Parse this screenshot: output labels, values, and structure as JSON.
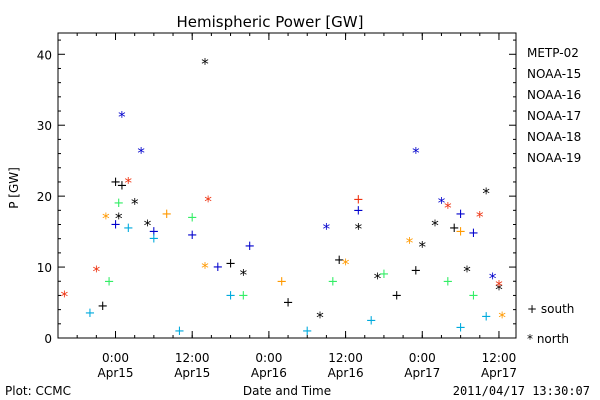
{
  "chart_data": {
    "type": "scatter",
    "title": "Hemispheric Power [GW]",
    "xlabel": "Date and Time",
    "ylabel": "P [GW]",
    "ylim": [
      0,
      43
    ],
    "y_ticks": [
      0,
      10,
      20,
      30,
      40
    ],
    "xlim": [
      "2011-04-14 15:00",
      "2011-04-17 14:40"
    ],
    "x_ticks": [
      {
        "at": "2011-04-15 00:00",
        "line1": "0:00",
        "line2": "Apr15"
      },
      {
        "at": "2011-04-15 12:00",
        "line1": "12:00",
        "line2": "Apr15"
      },
      {
        "at": "2011-04-16 00:00",
        "line1": "0:00",
        "line2": "Apr16"
      },
      {
        "at": "2011-04-16 12:00",
        "line1": "12:00",
        "line2": "Apr16"
      },
      {
        "at": "2011-04-17 00:00",
        "line1": "0:00",
        "line2": "Apr17"
      },
      {
        "at": "2011-04-17 12:00",
        "line1": "12:00",
        "line2": "Apr17"
      }
    ],
    "grid": false,
    "legend_position": "right",
    "marker_legend": {
      "south": "+ south",
      "north": "* north"
    },
    "series": [
      {
        "name": "METP-02",
        "color": "#000000",
        "points": [
          [
            "2011-04-14 22:00",
            4.5,
            "+"
          ],
          [
            "2011-04-15 00:00",
            22.0,
            "+"
          ],
          [
            "2011-04-15 00:30",
            17.0,
            "*"
          ],
          [
            "2011-04-15 01:00",
            21.5,
            "+"
          ],
          [
            "2011-04-15 03:00",
            19.0,
            "*"
          ],
          [
            "2011-04-15 05:00",
            16.0,
            "*"
          ],
          [
            "2011-04-15 14:00",
            38.8,
            "*"
          ],
          [
            "2011-04-15 18:00",
            10.5,
            "+"
          ],
          [
            "2011-04-15 20:00",
            9.0,
            "*"
          ],
          [
            "2011-04-16 03:00",
            5.0,
            "+"
          ],
          [
            "2011-04-16 08:00",
            3.0,
            "*"
          ],
          [
            "2011-04-16 11:00",
            11.0,
            "+"
          ],
          [
            "2011-04-16 14:00",
            15.5,
            "*"
          ],
          [
            "2011-04-16 17:00",
            8.5,
            "*"
          ],
          [
            "2011-04-16 20:00",
            6.0,
            "+"
          ],
          [
            "2011-04-16 23:00",
            9.5,
            "+"
          ],
          [
            "2011-04-17 00:00",
            13.0,
            "*"
          ],
          [
            "2011-04-17 02:00",
            16.0,
            "*"
          ],
          [
            "2011-04-17 05:00",
            15.5,
            "+"
          ],
          [
            "2011-04-17 07:00",
            9.5,
            "*"
          ],
          [
            "2011-04-17 10:00",
            20.5,
            "*"
          ],
          [
            "2011-04-17 12:00",
            7.0,
            "*"
          ]
        ]
      },
      {
        "name": "NOAA-15",
        "color": "#0000cc",
        "points": [
          [
            "2011-04-15 00:00",
            16.0,
            "+"
          ],
          [
            "2011-04-15 01:00",
            31.3,
            "*"
          ],
          [
            "2011-04-15 04:00",
            26.2,
            "*"
          ],
          [
            "2011-04-15 06:00",
            15.0,
            "+"
          ],
          [
            "2011-04-15 12:00",
            14.5,
            "+"
          ],
          [
            "2011-04-15 16:00",
            10.0,
            "+"
          ],
          [
            "2011-04-15 21:00",
            13.0,
            "+"
          ],
          [
            "2011-04-16 09:00",
            15.5,
            "*"
          ],
          [
            "2011-04-16 14:00",
            18.0,
            "+"
          ],
          [
            "2011-04-16 23:00",
            26.2,
            "*"
          ],
          [
            "2011-04-17 03:00",
            19.2,
            "*"
          ],
          [
            "2011-04-17 06:00",
            17.5,
            "+"
          ],
          [
            "2011-04-17 08:00",
            14.8,
            "+"
          ],
          [
            "2011-04-17 11:00",
            8.5,
            "*"
          ]
        ]
      },
      {
        "name": "NOAA-16",
        "color": "#00aadd",
        "points": [
          [
            "2011-04-14 20:00",
            3.5,
            "+"
          ],
          [
            "2011-04-15 02:00",
            15.5,
            "+"
          ],
          [
            "2011-04-15 06:00",
            14.0,
            "+"
          ],
          [
            "2011-04-15 10:00",
            1.0,
            "+"
          ],
          [
            "2011-04-15 18:00",
            6.0,
            "+"
          ],
          [
            "2011-04-16 06:00",
            1.0,
            "+"
          ],
          [
            "2011-04-16 16:00",
            2.5,
            "+"
          ],
          [
            "2011-04-17 06:00",
            1.5,
            "+"
          ],
          [
            "2011-04-17 10:00",
            3.0,
            "+"
          ]
        ]
      },
      {
        "name": "NOAA-17",
        "color": "#33ee66",
        "points": [
          [
            "2011-04-14 23:00",
            8.0,
            "+"
          ],
          [
            "2011-04-15 00:30",
            19.0,
            "+"
          ],
          [
            "2011-04-15 12:00",
            17.0,
            "+"
          ],
          [
            "2011-04-15 20:00",
            6.0,
            "+"
          ],
          [
            "2011-04-16 10:00",
            8.0,
            "+"
          ],
          [
            "2011-04-16 18:00",
            9.0,
            "+"
          ],
          [
            "2011-04-17 04:00",
            8.0,
            "+"
          ],
          [
            "2011-04-17 08:00",
            6.0,
            "+"
          ]
        ]
      },
      {
        "name": "NOAA-18",
        "color": "#ff9900",
        "points": [
          [
            "2011-04-14 22:30",
            17.0,
            "*"
          ],
          [
            "2011-04-15 08:00",
            17.5,
            "+"
          ],
          [
            "2011-04-15 14:00",
            10.0,
            "*"
          ],
          [
            "2011-04-16 02:00",
            8.0,
            "+"
          ],
          [
            "2011-04-16 12:00",
            10.5,
            "*"
          ],
          [
            "2011-04-16 22:00",
            13.5,
            "*"
          ],
          [
            "2011-04-17 06:00",
            15.0,
            "+"
          ],
          [
            "2011-04-17 12:30",
            3.0,
            "*"
          ]
        ]
      },
      {
        "name": "NOAA-19",
        "color": "#ee3311",
        "points": [
          [
            "2011-04-14 16:00",
            6.0,
            "*"
          ],
          [
            "2011-04-14 21:00",
            9.5,
            "*"
          ],
          [
            "2011-04-15 02:00",
            22.0,
            "*"
          ],
          [
            "2011-04-15 14:30",
            19.4,
            "*"
          ],
          [
            "2011-04-16 14:00",
            19.5,
            "+"
          ],
          [
            "2011-04-17 04:00",
            18.5,
            "*"
          ],
          [
            "2011-04-17 09:00",
            17.2,
            "*"
          ],
          [
            "2011-04-17 12:00",
            7.5,
            "*"
          ]
        ]
      }
    ]
  },
  "footer": {
    "left": "Plot: CCMC",
    "center": "Date and Time",
    "right": "2011/04/17 13:30:07"
  }
}
